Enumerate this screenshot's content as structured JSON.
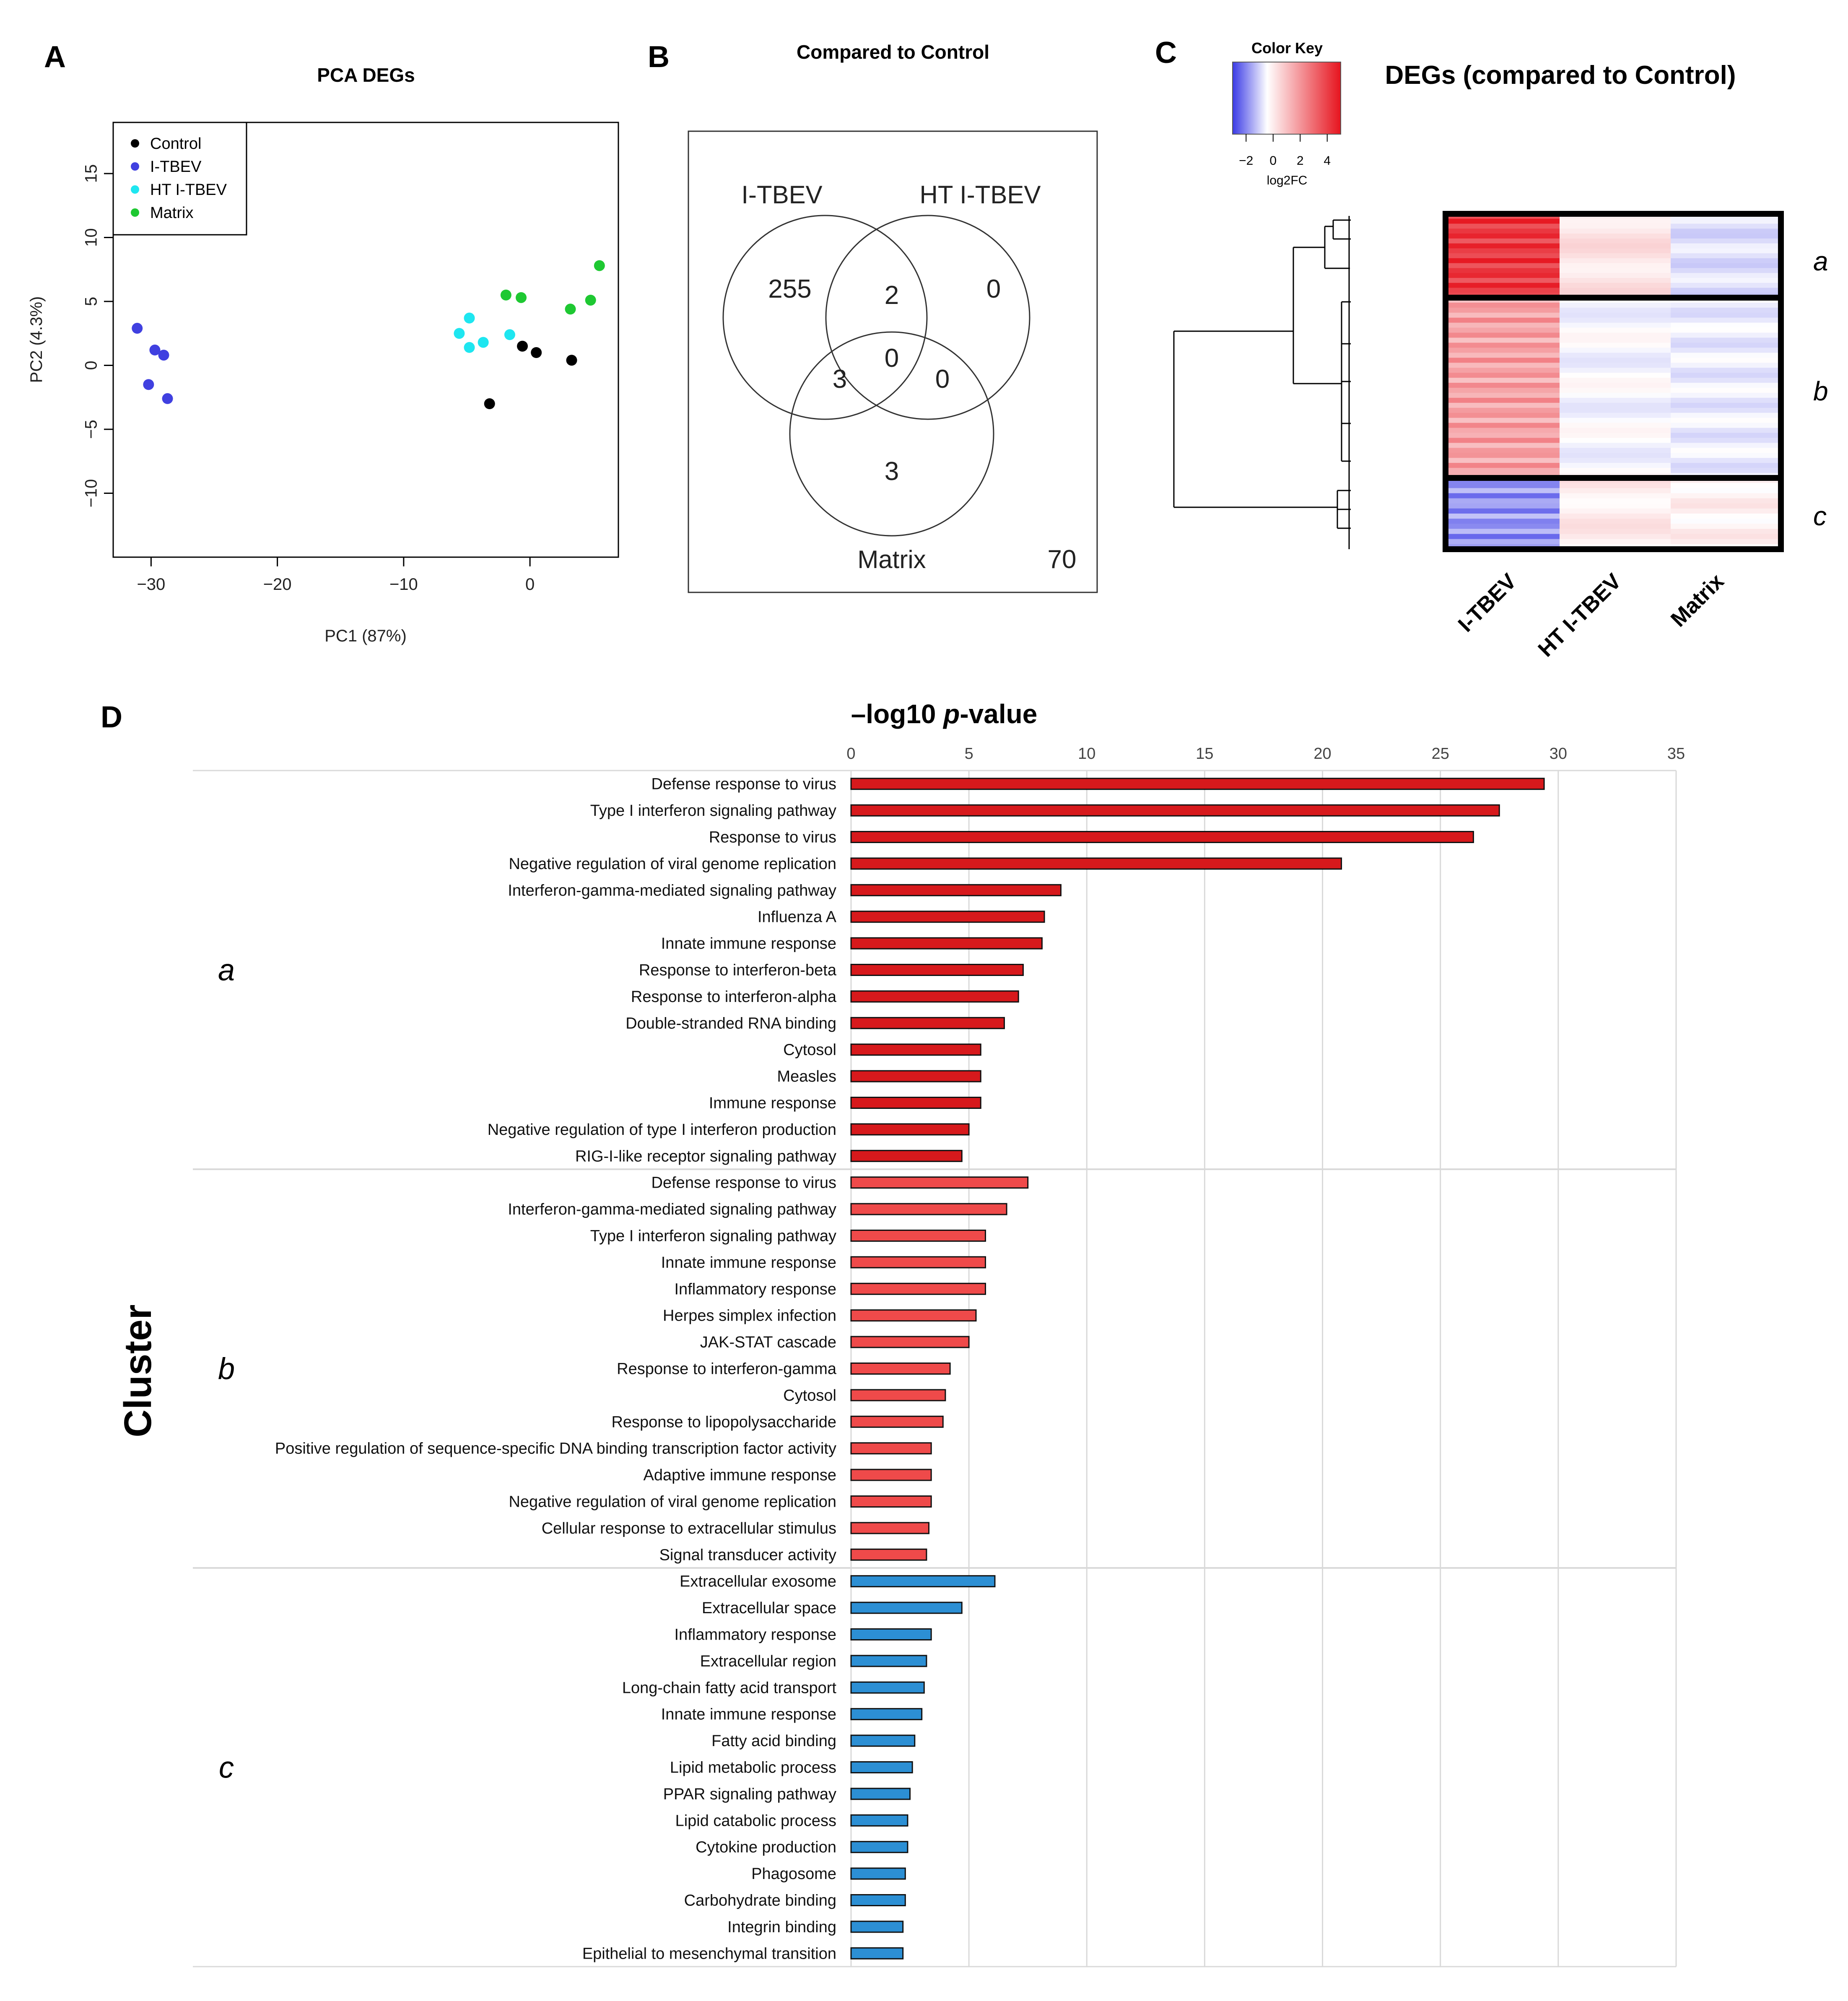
{
  "panels": {
    "A": "A",
    "B": "B",
    "C": "C",
    "D": "D"
  },
  "chart_data": [
    {
      "type": "scatter",
      "title": "PCA DEGs",
      "xlabel": "PC1 (87%)",
      "ylabel": "PC2 (4.3%)",
      "xlim": [
        -33,
        7
      ],
      "ylim": [
        -15,
        19
      ],
      "xticks": [
        -30,
        -20,
        -10,
        0
      ],
      "xtick_labels": [
        "−30",
        "−20",
        "−10",
        "0"
      ],
      "yticks": [
        -10,
        -5,
        0,
        5,
        10,
        15
      ],
      "ytick_labels": [
        "−10",
        "−5",
        "0",
        "5",
        "10",
        "15"
      ],
      "legend_position": "top-left",
      "series": [
        {
          "name": "Control",
          "color": "#000000",
          "points": [
            [
              -0.6,
              1.5
            ],
            [
              0.5,
              1.0
            ],
            [
              3.3,
              0.4
            ],
            [
              -3.2,
              -3.0
            ]
          ]
        },
        {
          "name": "I-TBEV",
          "color": "#4040e0",
          "points": [
            [
              -31.1,
              2.9
            ],
            [
              -29.7,
              1.2
            ],
            [
              -29.0,
              0.8
            ],
            [
              -30.2,
              -1.5
            ],
            [
              -28.7,
              -2.6
            ]
          ]
        },
        {
          "name": "HT I-TBEV",
          "color": "#1ee6f0",
          "points": [
            [
              -4.8,
              3.7
            ],
            [
              -5.6,
              2.5
            ],
            [
              -3.7,
              1.8
            ],
            [
              -4.8,
              1.4
            ],
            [
              -1.6,
              2.4
            ]
          ]
        },
        {
          "name": "Matrix",
          "color": "#1ec832",
          "points": [
            [
              -1.9,
              5.5
            ],
            [
              -0.7,
              5.3
            ],
            [
              3.2,
              4.4
            ],
            [
              4.8,
              5.1
            ],
            [
              5.5,
              7.8
            ]
          ]
        }
      ]
    },
    {
      "type": "venn",
      "title": "Compared to Control",
      "sets": [
        "I-TBEV",
        "HT I-TBEV",
        "Matrix"
      ],
      "regions": {
        "I-TBEV_only": 255,
        "I-TBEV_and_HT_I-TBEV": 2,
        "HT_I-TBEV_only": 0,
        "I-TBEV_and_Matrix": 3,
        "all_three": 0,
        "HT_I-TBEV_and_Matrix": 0,
        "Matrix_only": 3,
        "none": 70
      },
      "region_labels": {
        "I-TBEV_only": "255",
        "I-TBEV_and_HT_I-TBEV": "2",
        "HT_I-TBEV_only": "0",
        "I-TBEV_and_Matrix": "3",
        "all_three": "0",
        "HT_I-TBEV_and_Matrix": "0",
        "Matrix_only": "3",
        "none": "70"
      }
    },
    {
      "type": "heatmap",
      "title": "DEGs (compared to Control)",
      "color_key_title": "Color Key",
      "color_key_label": "log2FC",
      "color_key_ticks": [
        -2,
        0,
        2,
        4
      ],
      "color_key_tick_labels": [
        "−2",
        "0",
        "2",
        "4"
      ],
      "color_low": "#3a3ae6",
      "color_mid": "#ffffff",
      "color_high": "#e6141e",
      "columns": [
        "I-TBEV",
        "HT I-TBEV",
        "Matrix"
      ],
      "clusters": [
        {
          "name": "a",
          "mean_log2fc": [
            4.2,
            0.6,
            -0.5
          ]
        },
        {
          "name": "b",
          "mean_log2fc": [
            2.0,
            -0.1,
            -0.3
          ]
        },
        {
          "name": "c",
          "mean_log2fc": [
            -1.6,
            0.4,
            0.3
          ]
        }
      ]
    },
    {
      "type": "bar",
      "orientation": "horizontal",
      "title_prefix": "–log10 ",
      "title_italic": "p",
      "title_suffix": "-value",
      "ylabel": "Cluster",
      "xlim": [
        0,
        35
      ],
      "xticks": [
        0,
        5,
        10,
        15,
        20,
        25,
        30,
        35
      ],
      "xtick_labels": [
        "0",
        "5",
        "10",
        "15",
        "20",
        "25",
        "30",
        "35"
      ],
      "groups": [
        {
          "name": "a",
          "color": "#d7191c",
          "categories": [
            "Defense response to virus",
            "Type I interferon signaling pathway",
            "Response to virus",
            "Negative regulation of viral genome replication",
            "Interferon-gamma-mediated signaling pathway",
            "Influenza A",
            "Innate immune response",
            "Response to interferon-beta",
            "Response to interferon-alpha",
            "Double-stranded RNA binding",
            "Cytosol",
            "Measles",
            "Immune response",
            "Negative regulation of type I interferon production",
            "RIG-I-like receptor signaling pathway"
          ],
          "values": [
            29.4,
            27.5,
            26.4,
            20.8,
            8.9,
            8.2,
            8.1,
            7.3,
            7.1,
            6.5,
            5.5,
            5.5,
            5.5,
            5.0,
            4.7
          ]
        },
        {
          "name": "b",
          "color": "#ef4a4a",
          "categories": [
            "Defense response to virus",
            "Interferon-gamma-mediated signaling pathway",
            "Type I interferon signaling pathway",
            "Innate immune response",
            "Inflammatory response",
            "Herpes simplex infection",
            "JAK-STAT cascade",
            "Response to interferon-gamma",
            "Cytosol",
            "Response to lipopolysaccharide",
            "Positive regulation of sequence-specific DNA binding transcription factor activity",
            "Adaptive immune response",
            "Negative regulation of viral genome replication",
            "Cellular response to extracellular stimulus",
            "Signal transducer activity"
          ],
          "values": [
            7.5,
            6.6,
            5.7,
            5.7,
            5.7,
            5.3,
            5.0,
            4.2,
            4.0,
            3.9,
            3.4,
            3.4,
            3.4,
            3.3,
            3.2
          ]
        },
        {
          "name": "c",
          "color": "#2c8fd4",
          "categories": [
            "Extracellular exosome",
            "Extracellular space",
            "Inflammatory response",
            "Extracellular region",
            "Long-chain fatty acid transport",
            "Innate immune response",
            "Fatty acid binding",
            "Lipid metabolic process",
            "PPAR signaling pathway",
            "Lipid catabolic process",
            "Cytokine production",
            "Phagosome",
            "Carbohydrate binding",
            "Integrin binding",
            "Epithelial to mesenchymal transition"
          ],
          "values": [
            6.1,
            4.7,
            3.4,
            3.2,
            3.1,
            3.0,
            2.7,
            2.6,
            2.5,
            2.4,
            2.4,
            2.3,
            2.3,
            2.2,
            2.2
          ]
        }
      ]
    }
  ]
}
